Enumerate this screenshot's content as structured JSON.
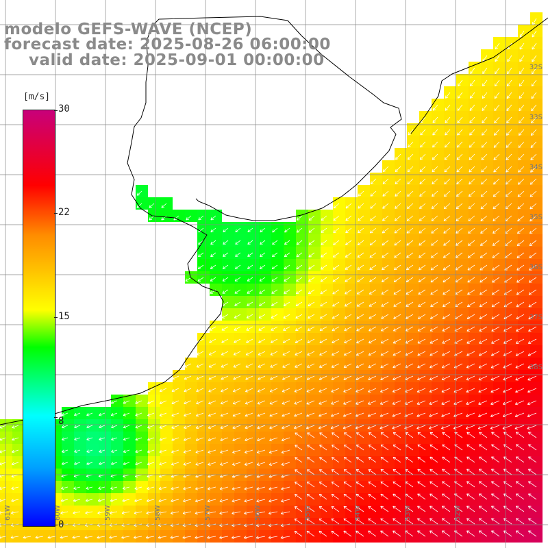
{
  "title": {
    "line1": "modelo GEFS-WAVE (NCEP)",
    "line2": "forecast date: 2025-08-26 06:00:00",
    "line3": "valid date: 2025-09-01 00:00:00"
  },
  "colorbar": {
    "unit": "[m/s]",
    "ticks": [
      "30",
      "22",
      "15",
      "8",
      "0"
    ],
    "tick_values": [
      30,
      22,
      15,
      8,
      0
    ],
    "min": 0,
    "max": 30,
    "colors": [
      "#0000ff",
      "#00a0ff",
      "#00ffff",
      "#00ff00",
      "#ffff00",
      "#ff8c00",
      "#ff0000",
      "#c8007a"
    ]
  },
  "map": {
    "lat_labels": [
      "32S",
      "33S",
      "34S",
      "35S",
      "36S",
      "37S",
      "38S"
    ],
    "lon_labels": [
      "61W",
      "60W",
      "59W",
      "58W",
      "57W",
      "56W",
      "55W",
      "54W",
      "53W",
      "52W"
    ],
    "land_color": "#ffffff",
    "grid_color": "#888888",
    "coast_color": "#000000",
    "arrow_color": "#ffffff"
  }
}
